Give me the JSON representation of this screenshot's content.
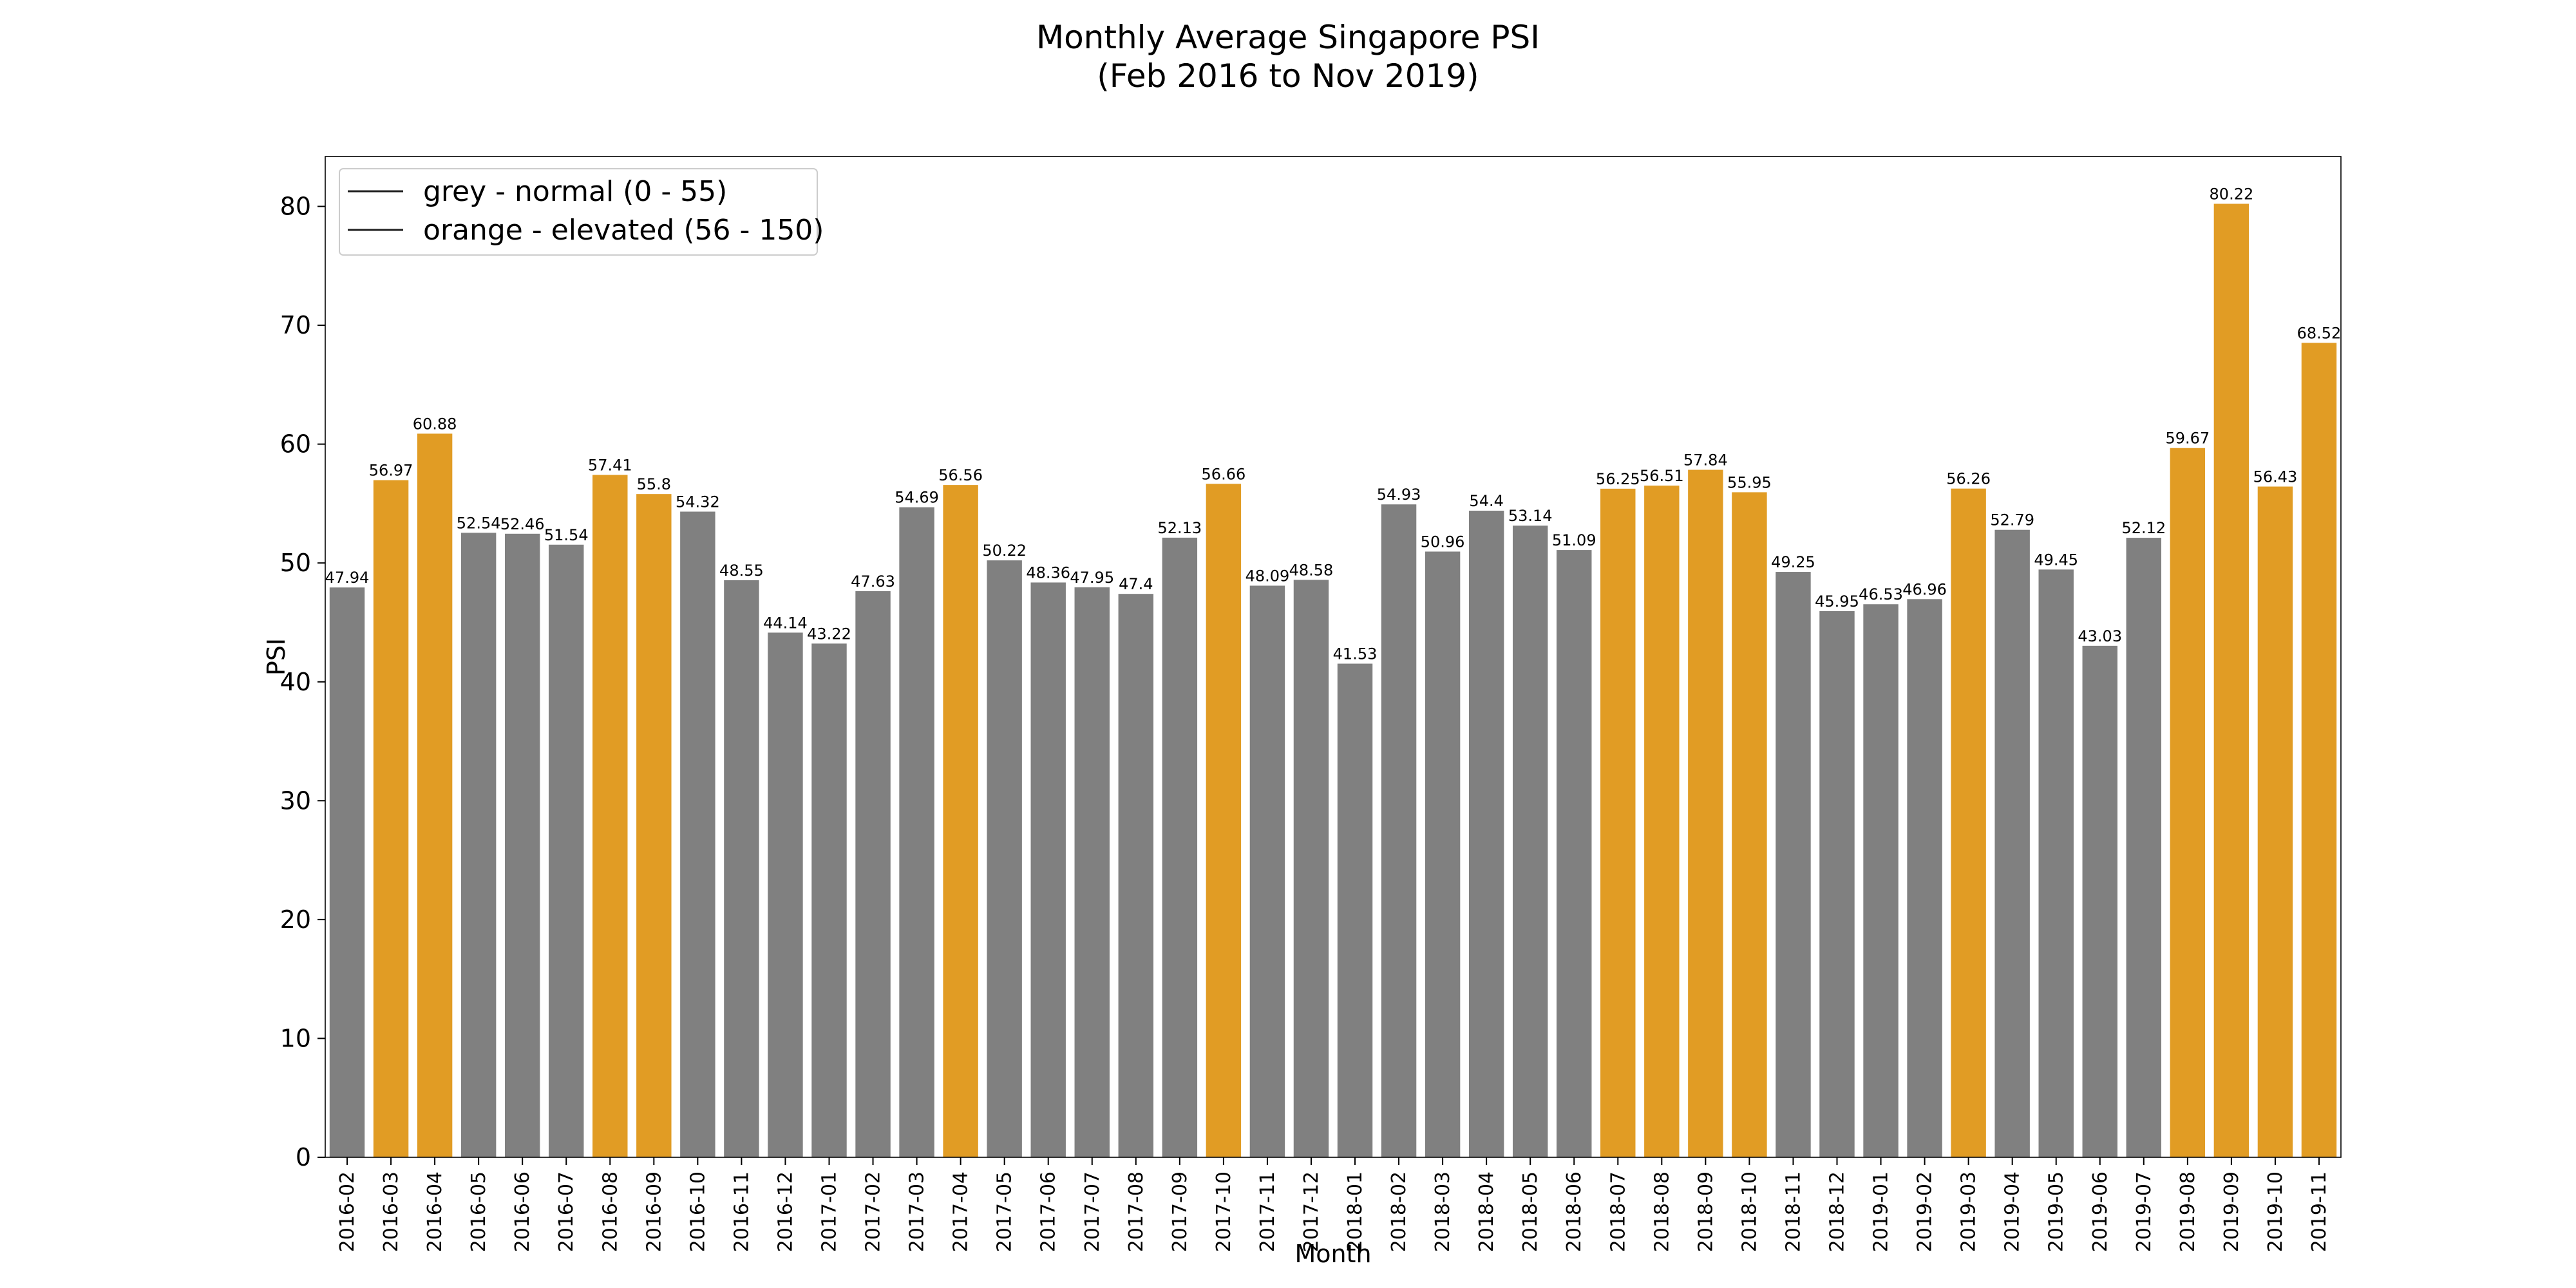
{
  "chart_data": {
    "type": "bar",
    "title": "Monthly Average Singapore PSI",
    "subtitle": "(Feb 2016 to Nov 2019)",
    "xlabel": "Month",
    "ylabel": "PSI",
    "ylim": [
      0,
      84.2
    ],
    "yticks": [
      0,
      10,
      20,
      30,
      40,
      50,
      60,
      70,
      80
    ],
    "grid": false,
    "legend": {
      "placement": "top-left",
      "entries": [
        "grey - normal (0 - 55)",
        "orange - elevated (56 - 150)"
      ]
    },
    "colors": {
      "normal": "#808080",
      "elevated": "#e19c24",
      "legend_line": "#1f1f1f"
    },
    "categories": [
      "2016-02",
      "2016-03",
      "2016-04",
      "2016-05",
      "2016-06",
      "2016-07",
      "2016-08",
      "2016-09",
      "2016-10",
      "2016-11",
      "2016-12",
      "2017-01",
      "2017-02",
      "2017-03",
      "2017-04",
      "2017-05",
      "2017-06",
      "2017-07",
      "2017-08",
      "2017-09",
      "2017-10",
      "2017-11",
      "2017-12",
      "2018-01",
      "2018-02",
      "2018-03",
      "2018-04",
      "2018-05",
      "2018-06",
      "2018-07",
      "2018-08",
      "2018-09",
      "2018-10",
      "2018-11",
      "2018-12",
      "2019-01",
      "2019-02",
      "2019-03",
      "2019-04",
      "2019-05",
      "2019-06",
      "2019-07",
      "2019-08",
      "2019-09",
      "2019-10",
      "2019-11"
    ],
    "values": [
      47.94,
      56.97,
      60.88,
      52.54,
      52.46,
      51.54,
      57.41,
      55.8,
      54.32,
      48.55,
      44.14,
      43.22,
      47.63,
      54.69,
      56.56,
      50.22,
      48.36,
      47.95,
      47.4,
      52.13,
      56.66,
      48.09,
      48.58,
      41.53,
      54.93,
      50.96,
      54.4,
      53.14,
      51.09,
      56.25,
      56.51,
      57.84,
      55.95,
      49.25,
      45.95,
      46.53,
      46.96,
      56.26,
      52.79,
      49.45,
      43.03,
      52.12,
      59.67,
      80.22,
      56.43,
      68.52
    ],
    "value_labels": [
      "47.94",
      "56.97",
      "60.88",
      "52.54",
      "52.46",
      "51.54",
      "57.41",
      "55.8",
      "54.32",
      "48.55",
      "44.14",
      "43.22",
      "47.63",
      "54.69",
      "56.56",
      "50.22",
      "48.36",
      "47.95",
      "47.4",
      "52.13",
      "56.66",
      "48.09",
      "48.58",
      "41.53",
      "54.93",
      "50.96",
      "54.4",
      "53.14",
      "51.09",
      "56.25",
      "56.51",
      "57.84",
      "55.95",
      "49.25",
      "45.95",
      "46.53",
      "46.96",
      "56.26",
      "52.79",
      "49.45",
      "43.03",
      "52.12",
      "59.67",
      "80.22",
      "56.43",
      "68.52"
    ],
    "bar_category": [
      "normal",
      "elevated",
      "elevated",
      "normal",
      "normal",
      "normal",
      "elevated",
      "elevated",
      "normal",
      "normal",
      "normal",
      "normal",
      "normal",
      "normal",
      "elevated",
      "normal",
      "normal",
      "normal",
      "normal",
      "normal",
      "elevated",
      "normal",
      "normal",
      "normal",
      "normal",
      "normal",
      "normal",
      "normal",
      "normal",
      "elevated",
      "elevated",
      "elevated",
      "elevated",
      "normal",
      "normal",
      "normal",
      "normal",
      "elevated",
      "normal",
      "normal",
      "normal",
      "normal",
      "elevated",
      "elevated",
      "elevated",
      "elevated"
    ]
  }
}
